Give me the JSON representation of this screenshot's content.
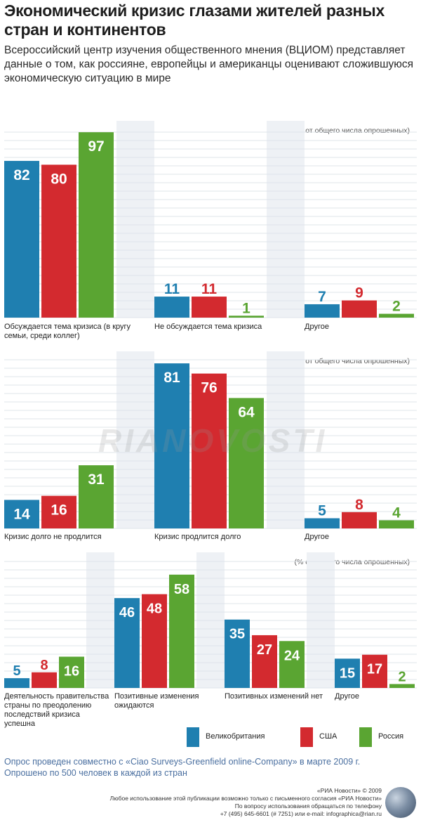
{
  "title": "Экономический кризис глазами жителей разных стран и континентов",
  "subtitle": "Всероссийский центр изучения общественного мнения (ВЦИОМ) представляет данные о том, как россияне, европейцы и американцы оценивают сложившуюся экономическую ситуацию в мире",
  "watermark": "RIANOVOSTI",
  "colors": {
    "uk": "#1f7fb0",
    "usa": "#d32a2f",
    "russia": "#5aa532",
    "band": "#eef1f5"
  },
  "chart_data": [
    {
      "type": "bar",
      "unit_note": "(% от общего числа опрошенных)",
      "ylim": [
        0,
        100
      ],
      "categories": [
        "Обсуждается тема кризиса (в кругу семьи, среди коллег)",
        "Не обсуждается тема кризиса",
        "Другое"
      ],
      "series": [
        {
          "name": "Великобритания",
          "values": [
            82,
            11,
            7
          ]
        },
        {
          "name": "США",
          "values": [
            80,
            11,
            9
          ]
        },
        {
          "name": "Россия",
          "values": [
            97,
            1,
            2
          ]
        }
      ]
    },
    {
      "type": "bar",
      "unit_note": "(% от общего числа опрошенных)",
      "ylim": [
        0,
        100
      ],
      "categories": [
        "Кризис долго не продлится",
        "Кризис продлится долго",
        "Другое"
      ],
      "series": [
        {
          "name": "Великобритания",
          "values": [
            14,
            81,
            5
          ]
        },
        {
          "name": "США",
          "values": [
            16,
            76,
            8
          ]
        },
        {
          "name": "Россия",
          "values": [
            31,
            64,
            4
          ]
        }
      ]
    },
    {
      "type": "bar",
      "unit_note": "(% от общего числа опрошенных)",
      "ylim": [
        0,
        100
      ],
      "categories": [
        "Деятельность правительства страны по преодолению последствий кризиса успешна",
        "Позитивные изменения ожидаются",
        "Позитивных изменений нет",
        "Другое"
      ],
      "series": [
        {
          "name": "Великобритания",
          "values": [
            5,
            46,
            35,
            15
          ]
        },
        {
          "name": "США",
          "values": [
            8,
            48,
            27,
            17
          ]
        },
        {
          "name": "Россия",
          "values": [
            16,
            58,
            24,
            2
          ]
        }
      ]
    }
  ],
  "legend": [
    {
      "label": "Великобритания",
      "color": "#1f7fb0"
    },
    {
      "label": "США",
      "color": "#d32a2f"
    },
    {
      "label": "Россия",
      "color": "#5aa532"
    }
  ],
  "note": "Опрос проведен совместно с «Ciao Surveys-Greenfield online-Company» в марте 2009 г. Опрошено по 500 человек в каждой из стран",
  "footer": {
    "copyright": "«РИА Новости» © 2009",
    "line1": "Любое использование этой публикации возможно только с письменного согласия «РИА Новости»",
    "line2": "По вопросу использования обращаться по телефону",
    "line3": "+7 (495) 645-6601 (# 7251) или e-mail: infographica@rian.ru"
  }
}
